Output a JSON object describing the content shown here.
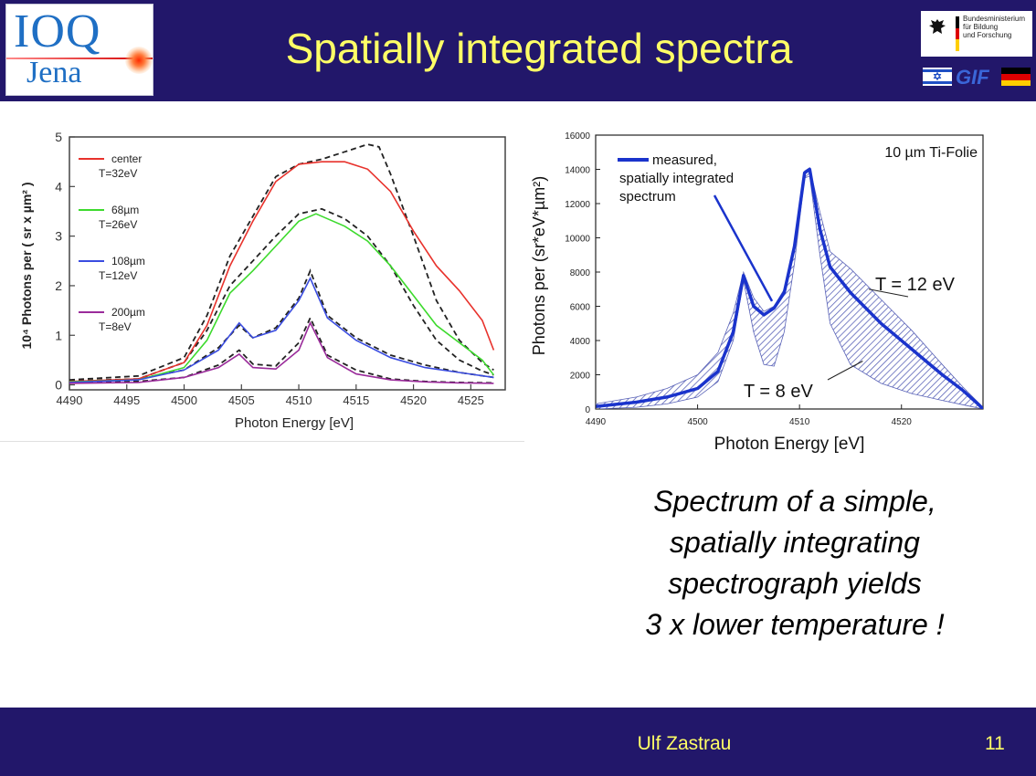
{
  "slide": {
    "title": "Spatially integrated spectra",
    "caption_lines": [
      "Spectrum of a simple,",
      "spatially integrating",
      "spectrograph yields",
      "3 x lower temperature !"
    ],
    "footer_author": "Ulf Zastrau",
    "page_number": "11",
    "colors": {
      "background_band": "#22176a",
      "title_text": "#ffff66"
    }
  },
  "logos": {
    "ioq_text": "IOQ",
    "jena_text": "Jena",
    "bmbf_text": [
      "Bundesministerium",
      "für Bildung",
      "und Forschung"
    ],
    "gif_text": "GIF"
  },
  "chart_data": [
    {
      "type": "line",
      "xlabel": "Photon Energy [eV]",
      "ylabel": "10⁴ Photons per ( sr x µm² )",
      "xlim": [
        4490,
        4528
      ],
      "ylim": [
        -0.1,
        5
      ],
      "xticks": [
        4490,
        4495,
        4500,
        4505,
        4510,
        4515,
        4520,
        4525
      ],
      "yticks": [
        0,
        1,
        2,
        3,
        4,
        5
      ],
      "legend_position": "top-left",
      "series": [
        {
          "name": "center",
          "sublabel": "T=32eV",
          "color": "#e8322c",
          "x": [
            4490,
            4496,
            4500,
            4502,
            4504,
            4506,
            4508,
            4510,
            4512,
            4514,
            4516,
            4518,
            4520,
            4522,
            4524,
            4526,
            4527
          ],
          "y": [
            0.07,
            0.12,
            0.45,
            1.2,
            2.4,
            3.3,
            4.1,
            4.45,
            4.5,
            4.5,
            4.35,
            3.9,
            3.1,
            2.4,
            1.9,
            1.3,
            0.7
          ]
        },
        {
          "name": "68µm",
          "sublabel": "T=26eV",
          "color": "#3dda2d",
          "x": [
            4490,
            4496,
            4500,
            4502,
            4504,
            4506,
            4508,
            4510,
            4511.5,
            4514,
            4516,
            4518,
            4520,
            4522,
            4524,
            4526,
            4527
          ],
          "y": [
            0.06,
            0.1,
            0.35,
            0.9,
            1.85,
            2.3,
            2.8,
            3.3,
            3.45,
            3.2,
            2.9,
            2.4,
            1.8,
            1.2,
            0.85,
            0.5,
            0.2
          ]
        },
        {
          "name": "108µm",
          "sublabel": "T=12eV",
          "color": "#3a4ce0",
          "x": [
            4490,
            4496,
            4500,
            4503,
            4504.8,
            4506,
            4508,
            4510,
            4511,
            4512.5,
            4515,
            4518,
            4521,
            4524,
            4527
          ],
          "y": [
            0.05,
            0.1,
            0.3,
            0.7,
            1.25,
            0.95,
            1.1,
            1.7,
            2.15,
            1.35,
            0.9,
            0.55,
            0.35,
            0.25,
            0.15
          ]
        },
        {
          "name": "200µm",
          "sublabel": "T=8eV",
          "color": "#9a2b9a",
          "x": [
            4490,
            4496,
            4500,
            4503,
            4504.8,
            4506,
            4508,
            4510,
            4511,
            4512.5,
            4515,
            4518,
            4521,
            4524,
            4527
          ],
          "y": [
            0.03,
            0.05,
            0.15,
            0.35,
            0.62,
            0.35,
            0.32,
            0.7,
            1.25,
            0.55,
            0.22,
            0.1,
            0.06,
            0.04,
            0.03
          ]
        }
      ],
      "fits": [
        {
          "x": [
            4490,
            4496,
            4500,
            4502,
            4504,
            4506,
            4508,
            4510,
            4512,
            4514,
            4516,
            4517,
            4518,
            4520,
            4522,
            4524,
            4526,
            4527
          ],
          "y": [
            0.1,
            0.18,
            0.55,
            1.4,
            2.6,
            3.4,
            4.2,
            4.45,
            4.55,
            4.7,
            4.85,
            4.8,
            4.25,
            3.0,
            1.7,
            0.9,
            0.45,
            0.3
          ]
        },
        {
          "x": [
            4490,
            4496,
            4500,
            4502,
            4504,
            4506,
            4508,
            4510,
            4512,
            4514,
            4516,
            4518,
            4520,
            4522,
            4524,
            4526,
            4527
          ],
          "y": [
            0.08,
            0.12,
            0.45,
            1.1,
            2.0,
            2.5,
            3.0,
            3.45,
            3.55,
            3.35,
            3.0,
            2.4,
            1.6,
            0.9,
            0.5,
            0.28,
            0.2
          ]
        },
        {
          "x": [
            4490,
            4496,
            4500,
            4503,
            4504.8,
            4506,
            4508,
            4510,
            4511,
            4512.5,
            4515,
            4518,
            4521,
            4524,
            4527
          ],
          "y": [
            0.06,
            0.12,
            0.3,
            0.75,
            1.2,
            0.95,
            1.15,
            1.75,
            2.3,
            1.4,
            0.95,
            0.6,
            0.4,
            0.25,
            0.15
          ]
        },
        {
          "x": [
            4490,
            4496,
            4500,
            4503,
            4504.8,
            4506,
            4508,
            4510,
            4511,
            4512.5,
            4515,
            4518,
            4521,
            4524,
            4527
          ],
          "y": [
            0.05,
            0.07,
            0.15,
            0.4,
            0.7,
            0.42,
            0.38,
            0.85,
            1.35,
            0.6,
            0.3,
            0.12,
            0.07,
            0.05,
            0.04
          ]
        }
      ]
    },
    {
      "type": "line",
      "xlabel": "Photon Energy [eV]",
      "ylabel": "Photons per (sr*eV*µm²)",
      "xlim": [
        4490,
        4528
      ],
      "ylim": [
        0,
        16000
      ],
      "xticks": [
        4490,
        4500,
        4510,
        4520
      ],
      "yticks": [
        0,
        2000,
        4000,
        6000,
        8000,
        10000,
        12000,
        14000,
        16000
      ],
      "annotation_top_right": "10 µm Ti-Folie",
      "legend": {
        "label_lines": [
          "measured,",
          "spatially integrated",
          "spectrum"
        ],
        "color": "#1a33cc"
      },
      "band_labels": {
        "upper": "T = 12 eV",
        "lower": "T = 8 eV"
      },
      "series": [
        {
          "name": "measured, spatially integrated spectrum",
          "color": "#1a33cc",
          "x": [
            4490,
            4494,
            4497,
            4500,
            4502,
            4503.5,
            4504.5,
            4505.5,
            4506.5,
            4507.5,
            4508.5,
            4509.5,
            4510.5,
            4511,
            4512,
            4513,
            4515,
            4518,
            4521,
            4524,
            4526,
            4527.5,
            4528
          ],
          "y": [
            150,
            400,
            700,
            1200,
            2200,
            4500,
            7800,
            6000,
            5500,
            5900,
            6800,
            9500,
            13800,
            14000,
            10500,
            8300,
            6800,
            5000,
            3500,
            2000,
            1100,
            300,
            0
          ]
        }
      ],
      "band_upper": {
        "x": [
          4490,
          4494,
          4497,
          4500,
          4502,
          4503.5,
          4504.5,
          4505.5,
          4506.5,
          4507.5,
          4508.5,
          4509.5,
          4510.5,
          4511,
          4512,
          4513,
          4515,
          4518,
          4521,
          4524,
          4526,
          4528
        ],
        "y": [
          300,
          700,
          1200,
          2000,
          3300,
          5600,
          8000,
          6500,
          5700,
          6000,
          7000,
          9800,
          13900,
          14100,
          11500,
          9200,
          8200,
          6400,
          4600,
          2600,
          1300,
          100
        ]
      },
      "band_lower": {
        "x": [
          4490,
          4494,
          4497,
          4500,
          4502,
          4503.5,
          4504.5,
          4505.5,
          4506.5,
          4507.5,
          4508.5,
          4509.5,
          4510.5,
          4511,
          4512,
          4513,
          4515,
          4518,
          4521,
          4524,
          4526,
          4528
        ],
        "y": [
          0,
          100,
          300,
          700,
          1600,
          4000,
          7500,
          4500,
          2600,
          2500,
          4500,
          8500,
          13500,
          13600,
          9000,
          5000,
          2600,
          1500,
          900,
          500,
          250,
          0
        ]
      }
    }
  ]
}
